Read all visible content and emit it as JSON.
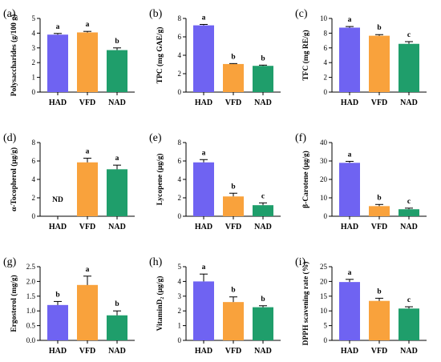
{
  "colors": {
    "HAD": "#6f63f2",
    "VFD": "#f9a23c",
    "NAD": "#1f9e6b"
  },
  "chart_data": [
    {
      "type": "bar",
      "label": "(a)",
      "ylabel": "Polysaccharides (g/100 g)",
      "ylim": [
        0,
        5
      ],
      "yticks": [
        0,
        1,
        2,
        3,
        4,
        5
      ],
      "categories": [
        "HAD",
        "VFD",
        "NAD"
      ],
      "values": [
        3.9,
        4.05,
        2.85
      ],
      "errors": [
        0.08,
        0.07,
        0.15
      ],
      "letters": [
        "a",
        "a",
        "b"
      ]
    },
    {
      "type": "bar",
      "label": "(b)",
      "ylabel": "TPC (mg GAE/g)",
      "ylim": [
        0,
        8
      ],
      "yticks": [
        0,
        2,
        4,
        6,
        8
      ],
      "categories": [
        "HAD",
        "VFD",
        "NAD"
      ],
      "values": [
        7.25,
        3.05,
        2.85
      ],
      "errors": [
        0.1,
        0.05,
        0.08
      ],
      "letters": [
        "a",
        "b",
        "b"
      ]
    },
    {
      "type": "bar",
      "label": "(c)",
      "ylabel": "TFC (mg RE/g)",
      "ylim": [
        0,
        10
      ],
      "yticks": [
        0,
        2,
        4,
        6,
        8,
        10
      ],
      "categories": [
        "HAD",
        "VFD",
        "NAD"
      ],
      "values": [
        8.75,
        7.65,
        6.55
      ],
      "errors": [
        0.15,
        0.15,
        0.3
      ],
      "letters": [
        "a",
        "b",
        "c"
      ]
    },
    {
      "type": "bar",
      "label": "(d)",
      "ylabel": "α-Tocopherol (μg/g)",
      "ylim": [
        0,
        8
      ],
      "yticks": [
        0,
        2,
        4,
        6,
        8
      ],
      "categories": [
        "HAD",
        "VFD",
        "NAD"
      ],
      "values": [
        null,
        5.85,
        5.1
      ],
      "errors": [
        null,
        0.45,
        0.45
      ],
      "letters": [
        "ND",
        "a",
        "a"
      ]
    },
    {
      "type": "bar",
      "label": "(e)",
      "ylabel": "Lycopene (μg/g)",
      "ylim": [
        0,
        8
      ],
      "yticks": [
        0,
        2,
        4,
        6,
        8
      ],
      "categories": [
        "HAD",
        "VFD",
        "NAD"
      ],
      "values": [
        5.85,
        2.15,
        1.2
      ],
      "errors": [
        0.3,
        0.35,
        0.25
      ],
      "letters": [
        "a",
        "b",
        "c"
      ]
    },
    {
      "type": "bar",
      "label": "(f)",
      "ylabel": "β-Carotene (μg/g)",
      "ylim": [
        0,
        40
      ],
      "yticks": [
        0,
        10,
        20,
        30,
        40
      ],
      "categories": [
        "HAD",
        "VFD",
        "NAD"
      ],
      "values": [
        29,
        5.5,
        3.8
      ],
      "errors": [
        0.8,
        0.9,
        0.6
      ],
      "letters": [
        "a",
        "b",
        "c"
      ]
    },
    {
      "type": "bar",
      "label": "(g)",
      "ylabel": "Ergosterol (mg/g)",
      "ylim": [
        0,
        2.5
      ],
      "yticks": [
        0.0,
        0.5,
        1.0,
        1.5,
        2.0,
        2.5
      ],
      "categories": [
        "HAD",
        "VFD",
        "NAD"
      ],
      "values": [
        1.2,
        1.88,
        0.85
      ],
      "errors": [
        0.12,
        0.3,
        0.15
      ],
      "letters": [
        "b",
        "a",
        "b"
      ]
    },
    {
      "type": "bar",
      "label": "(h)",
      "ylabel": "VitaminD₂ (μg/g)",
      "ylim": [
        0,
        5
      ],
      "yticks": [
        0,
        1,
        2,
        3,
        4,
        5
      ],
      "categories": [
        "HAD",
        "VFD",
        "NAD"
      ],
      "values": [
        4.0,
        2.6,
        2.25
      ],
      "errors": [
        0.5,
        0.35,
        0.1
      ],
      "letters": [
        "a",
        "b",
        "b"
      ]
    },
    {
      "type": "bar",
      "label": "(i)",
      "ylabel": "DPPH scavening rate (%)",
      "ylim": [
        0,
        25
      ],
      "yticks": [
        0,
        5,
        10,
        15,
        20,
        25
      ],
      "categories": [
        "HAD",
        "VFD",
        "NAD"
      ],
      "values": [
        19.8,
        13.4,
        10.8
      ],
      "errors": [
        0.9,
        0.9,
        0.6
      ],
      "letters": [
        "a",
        "b",
        "c"
      ]
    }
  ]
}
